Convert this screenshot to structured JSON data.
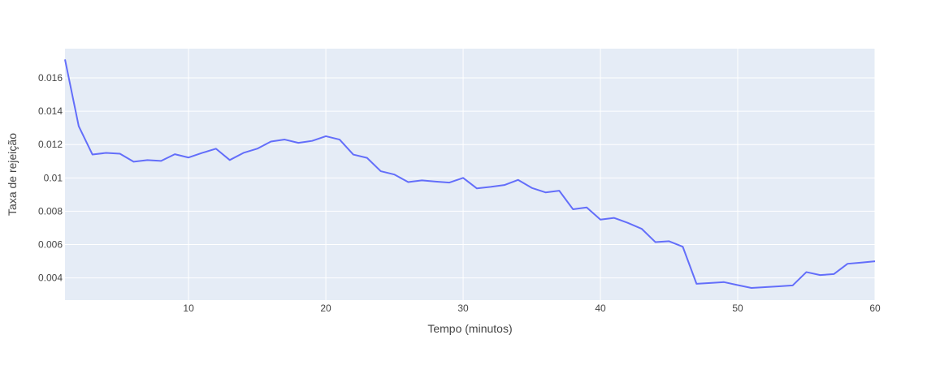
{
  "chart_data": {
    "type": "line",
    "title": "",
    "xlabel": "Tempo (minutos)",
    "ylabel": "Taxa de rejeição",
    "xlim": [
      1,
      60
    ],
    "ylim": [
      0.00267,
      0.01775
    ],
    "x_ticks": [
      10,
      20,
      30,
      40,
      50,
      60
    ],
    "y_ticks": [
      0.004,
      0.006,
      0.008,
      0.01,
      0.012,
      0.014,
      0.016
    ],
    "y_tick_labels": [
      "0.004",
      "0.006",
      "0.008",
      "0.01",
      "0.012",
      "0.014",
      "0.016"
    ],
    "grid": true,
    "legend": "none",
    "colors": {
      "line": "#636efa",
      "plot_bg": "#e5ecf6",
      "grid": "#ffffff"
    },
    "series": [
      {
        "x": [
          1,
          2,
          3,
          4,
          5,
          6,
          7,
          8,
          9,
          10,
          11,
          12,
          13,
          14,
          15,
          16,
          17,
          18,
          19,
          20,
          21,
          22,
          23,
          24,
          25,
          26,
          27,
          28,
          29,
          30,
          31,
          32,
          33,
          34,
          35,
          36,
          37,
          38,
          39,
          40,
          41,
          42,
          43,
          44,
          45,
          46,
          47,
          48,
          49,
          50,
          51,
          52,
          53,
          54,
          55,
          56,
          57,
          58,
          59,
          60
        ],
        "y": [
          0.0171,
          0.0131,
          0.0114,
          0.0115,
          0.01145,
          0.01097,
          0.01107,
          0.01102,
          0.01142,
          0.01122,
          0.0115,
          0.01175,
          0.01107,
          0.0115,
          0.01175,
          0.01218,
          0.0123,
          0.0121,
          0.01222,
          0.0125,
          0.0123,
          0.0114,
          0.0112,
          0.0104,
          0.0102,
          0.00975,
          0.00985,
          0.00978,
          0.00972,
          0.01,
          0.00937,
          0.00946,
          0.00957,
          0.00988,
          0.0094,
          0.00913,
          0.00923,
          0.00812,
          0.00823,
          0.0075,
          0.0076,
          0.0073,
          0.00695,
          0.00615,
          0.0062,
          0.00587,
          0.00365,
          0.0037,
          0.00375,
          0.00357,
          0.0034,
          0.00345,
          0.0035,
          0.00355,
          0.00435,
          0.00417,
          0.00423,
          0.00485,
          0.00492,
          0.005
        ]
      }
    ]
  }
}
